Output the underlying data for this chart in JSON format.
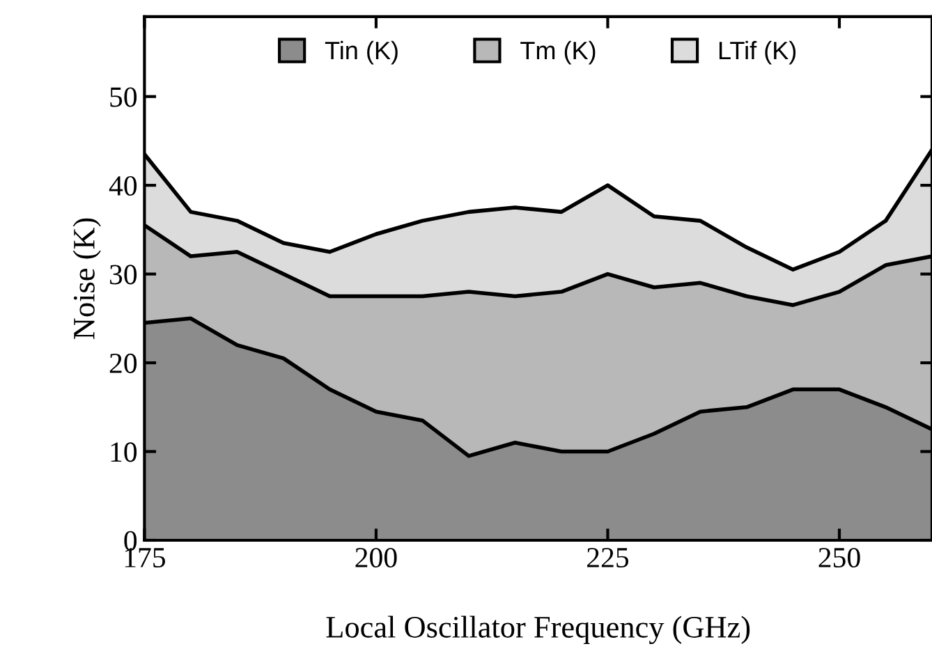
{
  "chart_data": {
    "type": "area",
    "stacked": true,
    "xlabel": "Local Oscillator Frequency (GHz)",
    "ylabel": "Noise (K)",
    "x": [
      175,
      180,
      185,
      190,
      195,
      200,
      205,
      210,
      215,
      220,
      225,
      230,
      235,
      240,
      245,
      250,
      255,
      260
    ],
    "series": [
      {
        "name": "Tin (K)",
        "color": "#8c8c8c",
        "values": [
          24.5,
          25,
          22,
          20.5,
          17,
          14.5,
          13.5,
          9.5,
          11,
          10,
          10,
          12,
          14.5,
          15,
          17,
          17,
          15,
          12.5
        ]
      },
      {
        "name": "Tm (K)",
        "color": "#b8b8b8",
        "values": [
          11,
          7,
          10.5,
          9.5,
          10.5,
          13,
          14,
          18.5,
          16.5,
          18,
          20,
          16.5,
          14.5,
          12.5,
          9.5,
          11,
          16,
          19.5
        ]
      },
      {
        "name": "LTif (K)",
        "color": "#dcdcdc",
        "values": [
          8,
          5,
          3.5,
          3.5,
          5,
          7,
          8.5,
          9,
          10,
          9,
          10,
          8,
          7,
          5.5,
          4,
          4.5,
          5,
          12
        ]
      }
    ],
    "xlim": [
      175,
      260
    ],
    "ylim": [
      0,
      59
    ],
    "xticks": [
      175,
      200,
      225,
      250
    ],
    "yticks": [
      0,
      10,
      20,
      30,
      40,
      50
    ],
    "grid": false,
    "legend": "top"
  }
}
